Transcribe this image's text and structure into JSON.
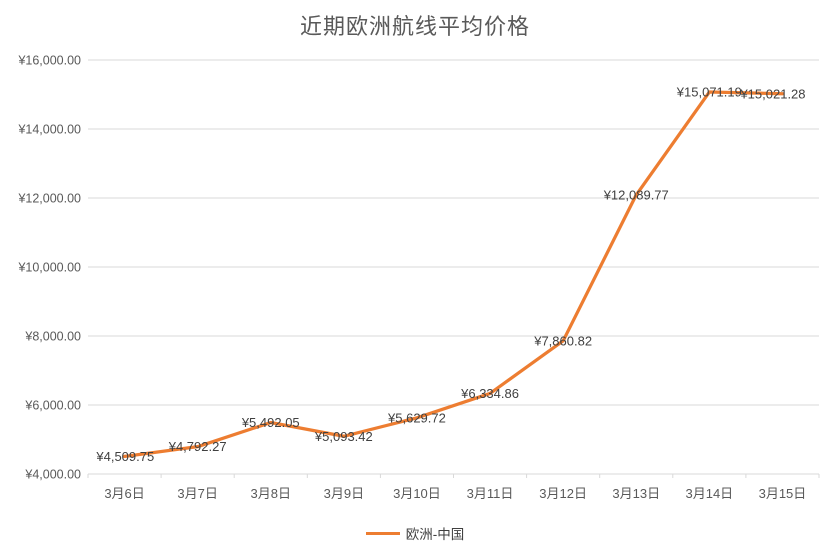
{
  "chart_data": {
    "type": "line",
    "title": "近期欧洲航线平均价格",
    "categories": [
      "3月6日",
      "3月7日",
      "3月8日",
      "3月9日",
      "3月10日",
      "3月11日",
      "3月12日",
      "3月13日",
      "3月14日",
      "3月15日"
    ],
    "series": [
      {
        "name": "欧洲-中国",
        "values": [
          4509.75,
          4792.27,
          5492.05,
          5093.42,
          5629.72,
          6334.86,
          7860.82,
          12089.77,
          15071.19,
          15021.28
        ],
        "color": "#ED7D31"
      }
    ],
    "data_labels": [
      "¥4,509.75",
      "¥4,792.27",
      "¥5,492.05",
      "¥5,093.42",
      "¥5,629.72",
      "¥6,334.86",
      "¥7,860.82",
      "¥12,089.77",
      "¥15,071.19",
      "¥15,021.28"
    ],
    "xlabel": "",
    "ylabel": "",
    "y_axis": {
      "min": 4000,
      "max": 16000,
      "step": 2000,
      "tick_labels": [
        "¥4,000.00",
        "¥6,000.00",
        "¥8,000.00",
        "¥10,000.00",
        "¥12,000.00",
        "¥14,000.00",
        "¥16,000.00"
      ]
    },
    "grid": "horizontal",
    "legend": {
      "position": "bottom",
      "entries": [
        {
          "label": "欧洲-中国",
          "color": "#ED7D31"
        }
      ]
    },
    "colors": {
      "line": "#ED7D31",
      "title": "#595959",
      "axis_text": "#595959",
      "data_label_text": "#404040",
      "gridline": "#D9D9D9"
    }
  }
}
